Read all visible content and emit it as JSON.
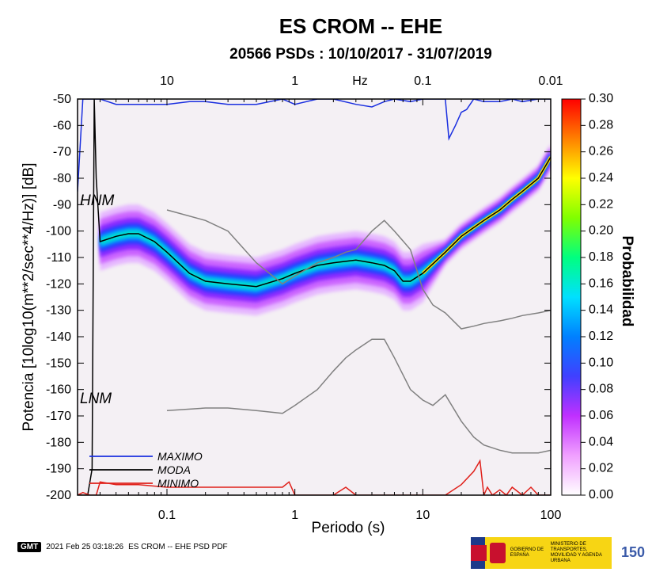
{
  "chart_data": {
    "type": "heatmap",
    "title": "ES CROM -- EHE",
    "subtitle": "20566 PSDs : 10/10/2017 - 31/07/2019",
    "xlabel": "Periodo (s)",
    "ylabel": "Potencia [10log10(m**2/sec**4/Hz)] [dB]",
    "xscale": "log",
    "xlim": [
      0.02,
      100
    ],
    "ylim": [
      -200,
      -50
    ],
    "xticks": [
      "0.1",
      "1",
      "10",
      "100"
    ],
    "yticks": [
      "-50",
      "-60",
      "-70",
      "-80",
      "-90",
      "-100",
      "-110",
      "-120",
      "-130",
      "-140",
      "-150",
      "-160",
      "-170",
      "-180",
      "-190",
      "-200"
    ],
    "top_axis": {
      "label": "Hz",
      "ticks": [
        "10",
        "1",
        "0.1",
        "0.01"
      ]
    },
    "colorbar": {
      "label": "Probabilidad",
      "range": [
        0,
        0.3
      ],
      "ticks": [
        "0.00",
        "0.02",
        "0.04",
        "0.06",
        "0.08",
        "0.10",
        "0.12",
        "0.14",
        "0.16",
        "0.18",
        "0.20",
        "0.22",
        "0.24",
        "0.26",
        "0.28",
        "0.30"
      ],
      "colors": [
        "#ffffff",
        "#f0a0ff",
        "#c030ff",
        "#4040ff",
        "#0080ff",
        "#00e0ff",
        "#00ff80",
        "#80ff00",
        "#ffff00",
        "#ff8000",
        "#ff0000"
      ]
    },
    "annotations": [
      "HNM",
      "LNM"
    ],
    "series": [
      {
        "name": "MAXIMO",
        "color": "#1a2fe0",
        "x": [
          0.02,
          0.022,
          0.024,
          0.027,
          0.03,
          0.04,
          0.06,
          0.1,
          0.15,
          0.2,
          0.3,
          0.5,
          0.8,
          1,
          1.5,
          2,
          3,
          4,
          5,
          6,
          8,
          10,
          12,
          15,
          16,
          18,
          20,
          22,
          25,
          30,
          40,
          50,
          60,
          80,
          100
        ],
        "y": [
          -85,
          -50,
          -50,
          -50,
          -50,
          -52,
          -52,
          -52,
          -51,
          -51,
          -52,
          -52,
          -50,
          -52,
          -50,
          -50,
          -52,
          -53,
          -51,
          -50,
          -51,
          -50,
          -50,
          -50,
          -65,
          -60,
          -55,
          -54,
          -50,
          -51,
          -51,
          -50,
          -51,
          -50,
          -50
        ]
      },
      {
        "name": "MODA",
        "color": "#000000",
        "x": [
          0.021,
          0.024,
          0.026,
          0.027,
          0.028,
          0.03,
          0.04,
          0.05,
          0.06,
          0.08,
          0.1,
          0.15,
          0.2,
          0.3,
          0.5,
          0.8,
          1,
          1.5,
          2,
          3,
          4,
          5,
          6,
          7,
          8,
          10,
          15,
          20,
          30,
          40,
          50,
          60,
          80,
          100
        ],
        "y": [
          -200,
          -200,
          -190,
          -50,
          -80,
          -104,
          -102,
          -101,
          -101,
          -104,
          -108,
          -116,
          -119,
          -120,
          -121,
          -118,
          -116,
          -113,
          -112,
          -111,
          -112,
          -113,
          -115,
          -119,
          -119,
          -116,
          -108,
          -102,
          -96,
          -92,
          -88,
          -85,
          -80,
          -72
        ]
      },
      {
        "name": "MINIMO",
        "color": "#e0201a",
        "x": [
          0.02,
          0.022,
          0.025,
          0.028,
          0.03,
          0.04,
          0.06,
          0.1,
          0.3,
          0.8,
          0.9,
          1,
          1.5,
          2,
          2.5,
          3,
          4,
          5,
          8,
          10,
          15,
          20,
          25,
          28,
          30,
          32,
          35,
          40,
          45,
          50,
          60,
          70,
          80,
          100
        ],
        "y": [
          -200,
          -199,
          -200,
          -200,
          -195,
          -196,
          -196,
          -197,
          -197,
          -197,
          -195,
          -200,
          -200,
          -200,
          -197,
          -200,
          -200,
          -200,
          -200,
          -200,
          -200,
          -196,
          -191,
          -187,
          -200,
          -197,
          -200,
          -198,
          -200,
          -197,
          -200,
          -197,
          -200,
          -200
        ]
      },
      {
        "name": "",
        "color": "#808080",
        "x": [
          0.1,
          0.2,
          0.3,
          0.5,
          0.8,
          1,
          1.5,
          2,
          2.5,
          3,
          4,
          5,
          6,
          8,
          10,
          12,
          15,
          20,
          25,
          30,
          40,
          50,
          60,
          80,
          100
        ],
        "y": [
          -92,
          -96,
          -100,
          -112,
          -120,
          -117,
          -112,
          -110,
          -108,
          -107,
          -100,
          -96,
          -100,
          -107,
          -122,
          -128,
          -131,
          -137,
          -136,
          -135,
          -134,
          -133,
          -132,
          -131,
          -130
        ]
      },
      {
        "name": "",
        "color": "#808080",
        "x": [
          0.1,
          0.2,
          0.3,
          0.5,
          0.8,
          1,
          1.5,
          2,
          2.5,
          3,
          4,
          5,
          6,
          8,
          10,
          12,
          15,
          20,
          25,
          30,
          40,
          50,
          60,
          80,
          100
        ],
        "y": [
          -168,
          -167,
          -167,
          -168,
          -169,
          -166,
          -160,
          -153,
          -148,
          -145,
          -141,
          -141,
          -148,
          -160,
          -164,
          -166,
          -162,
          -172,
          -178,
          -181,
          -183,
          -184,
          -184,
          -184,
          -183
        ]
      }
    ]
  },
  "legend": [
    {
      "name": "MAXIMO",
      "color": "#1a2fe0"
    },
    {
      "name": "MODA",
      "color": "#000000"
    },
    {
      "name": "MINIMO",
      "color": "#e0201a"
    }
  ],
  "footer": {
    "gmt_logo": "GMT",
    "timestamp": "2021 Feb 25 03:18:26",
    "caption": "ES CROM -- EHE PSD PDF"
  },
  "ministry": {
    "lines": [
      "GOBIERNO DE ESPAÑA",
      "MINISTERIO DE TRANSPORTES, MOVILIDAD Y AGENDA URBANA"
    ]
  },
  "logo_text": "150"
}
